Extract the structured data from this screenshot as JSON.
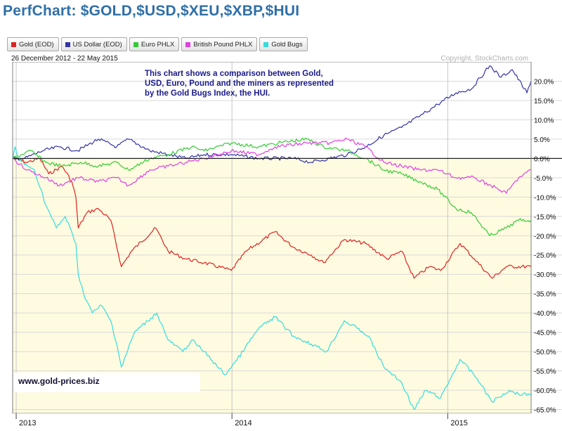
{
  "page": {
    "title": "PerfChart: $GOLD,$USD,$XEU,$XBP,$HUI"
  },
  "header": {
    "date_range": "26 December 2012 - 22 May 2015",
    "copyright": "Copyright, StockCharts.com",
    "annotation": [
      "This chart shows a comparison between Gold,",
      "USD, Euro, Pound and the miners as represented",
      "by the Gold Bugs Index, the HUI."
    ],
    "website": "www.gold-prices.biz"
  },
  "legend": [
    {
      "label": "Gold (EOD)",
      "color": "#dd2222"
    },
    {
      "label": "US Dollar (EOD)",
      "color": "#3333aa"
    },
    {
      "label": "Euro PHLX",
      "color": "#33cc33"
    },
    {
      "label": "British Pound PHLX",
      "color": "#e040e0"
    },
    {
      "label": "Gold Bugs",
      "color": "#33dddd"
    }
  ],
  "colors": {
    "gold": "#dd2222",
    "usd": "#3333aa",
    "euro": "#33cc33",
    "pound": "#e040e0",
    "hui": "#33dddd",
    "annotation": "#1a1a8c",
    "plot_negative_bg": "#fffbe0"
  },
  "chart_data": {
    "type": "line",
    "x_unit": "date",
    "x_range": [
      "2012-12-26",
      "2015-05-22"
    ],
    "x_ticks": [
      {
        "label": "2013",
        "date": "2013-01-01"
      },
      {
        "label": "2014",
        "date": "2014-01-01"
      },
      {
        "label": "2015",
        "date": "2015-01-01"
      }
    ],
    "y_unit": "percent change",
    "ylim": [
      -66,
      25
    ],
    "y_ticks": [
      20,
      15,
      10,
      5,
      0,
      -5,
      -10,
      -15,
      -20,
      -25,
      -30,
      -35,
      -40,
      -45,
      -50,
      -55,
      -60,
      -65
    ],
    "y_tick_labels": [
      "20.0%",
      "15.0%",
      "10.0%",
      "5.0%",
      "0.0%",
      "-5.0%",
      "-10.0%",
      "-15.0%",
      "-20.0%",
      "-25.0%",
      "-30.0%",
      "-35.0%",
      "-40.0%",
      "-45.0%",
      "-50.0%",
      "-55.0%",
      "-60.0%",
      "-65.0%"
    ],
    "grid": true,
    "series": [
      {
        "name": "Gold (EOD)",
        "color": "#dd2222",
        "points": [
          [
            "2012-12-26",
            0
          ],
          [
            "2013-01-20",
            -1
          ],
          [
            "2013-02-10",
            0
          ],
          [
            "2013-02-25",
            -4
          ],
          [
            "2013-03-20",
            -2
          ],
          [
            "2013-04-05",
            -6
          ],
          [
            "2013-04-12",
            -10
          ],
          [
            "2013-04-16",
            -18
          ],
          [
            "2013-05-01",
            -14
          ],
          [
            "2013-05-20",
            -13
          ],
          [
            "2013-06-10",
            -16
          ],
          [
            "2013-06-28",
            -28
          ],
          [
            "2013-07-15",
            -24
          ],
          [
            "2013-08-25",
            -18
          ],
          [
            "2013-09-15",
            -24
          ],
          [
            "2013-10-15",
            -26
          ],
          [
            "2013-11-15",
            -27
          ],
          [
            "2013-12-31",
            -29
          ],
          [
            "2014-01-25",
            -24
          ],
          [
            "2014-03-15",
            -19
          ],
          [
            "2014-04-15",
            -23
          ],
          [
            "2014-05-15",
            -25
          ],
          [
            "2014-06-05",
            -27
          ],
          [
            "2014-07-10",
            -21
          ],
          [
            "2014-08-15",
            -22
          ],
          [
            "2014-09-20",
            -26
          ],
          [
            "2014-10-15",
            -24
          ],
          [
            "2014-11-05",
            -31
          ],
          [
            "2014-12-01",
            -28
          ],
          [
            "2014-12-20",
            -29
          ],
          [
            "2015-01-22",
            -22
          ],
          [
            "2015-02-15",
            -26
          ],
          [
            "2015-03-17",
            -31
          ],
          [
            "2015-04-10",
            -28
          ],
          [
            "2015-05-22",
            -28
          ]
        ]
      },
      {
        "name": "US Dollar (EOD)",
        "color": "#3333aa",
        "points": [
          [
            "2012-12-26",
            0
          ],
          [
            "2013-01-15",
            0
          ],
          [
            "2013-02-15",
            2
          ],
          [
            "2013-03-15",
            3
          ],
          [
            "2013-04-15",
            2
          ],
          [
            "2013-05-20",
            5
          ],
          [
            "2013-06-20",
            3
          ],
          [
            "2013-07-10",
            5
          ],
          [
            "2013-08-15",
            2
          ],
          [
            "2013-09-15",
            1
          ],
          [
            "2013-10-15",
            0
          ],
          [
            "2013-11-15",
            1
          ],
          [
            "2013-12-31",
            1
          ],
          [
            "2014-02-15",
            0
          ],
          [
            "2014-04-15",
            0
          ],
          [
            "2014-05-15",
            -1
          ],
          [
            "2014-06-15",
            0
          ],
          [
            "2014-07-15",
            1
          ],
          [
            "2014-08-15",
            3
          ],
          [
            "2014-09-15",
            6
          ],
          [
            "2014-10-15",
            8
          ],
          [
            "2014-11-15",
            11
          ],
          [
            "2014-12-15",
            14
          ],
          [
            "2015-01-15",
            17
          ],
          [
            "2015-02-10",
            18
          ],
          [
            "2015-03-13",
            24
          ],
          [
            "2015-04-01",
            21
          ],
          [
            "2015-04-20",
            23
          ],
          [
            "2015-05-15",
            17
          ],
          [
            "2015-05-22",
            20
          ]
        ]
      },
      {
        "name": "Euro PHLX",
        "color": "#33cc33",
        "points": [
          [
            "2012-12-26",
            0
          ],
          [
            "2013-01-25",
            2
          ],
          [
            "2013-02-20",
            -1
          ],
          [
            "2013-03-20",
            -2
          ],
          [
            "2013-04-20",
            -1
          ],
          [
            "2013-05-20",
            -2
          ],
          [
            "2013-06-20",
            -1
          ],
          [
            "2013-07-10",
            -3
          ],
          [
            "2013-08-15",
            0
          ],
          [
            "2013-09-15",
            1
          ],
          [
            "2013-10-25",
            3
          ],
          [
            "2013-11-15",
            2
          ],
          [
            "2013-12-31",
            4
          ],
          [
            "2014-02-15",
            3
          ],
          [
            "2014-03-20",
            4
          ],
          [
            "2014-05-08",
            5
          ],
          [
            "2014-06-05",
            3
          ],
          [
            "2014-07-15",
            2
          ],
          [
            "2014-08-15",
            0
          ],
          [
            "2014-09-15",
            -3
          ],
          [
            "2014-10-15",
            -4
          ],
          [
            "2014-11-15",
            -6
          ],
          [
            "2014-12-15",
            -8
          ],
          [
            "2015-01-15",
            -13
          ],
          [
            "2015-02-10",
            -14
          ],
          [
            "2015-03-13",
            -20
          ],
          [
            "2015-04-10",
            -18
          ],
          [
            "2015-05-01",
            -16
          ],
          [
            "2015-05-22",
            -16
          ]
        ]
      },
      {
        "name": "British Pound PHLX",
        "color": "#e040e0",
        "points": [
          [
            "2012-12-26",
            0
          ],
          [
            "2013-01-20",
            -3
          ],
          [
            "2013-02-20",
            -5
          ],
          [
            "2013-03-15",
            -7
          ],
          [
            "2013-04-15",
            -5
          ],
          [
            "2013-05-20",
            -6
          ],
          [
            "2013-06-20",
            -5
          ],
          [
            "2013-07-10",
            -7
          ],
          [
            "2013-08-15",
            -3
          ],
          [
            "2013-09-15",
            -2
          ],
          [
            "2013-10-15",
            -1
          ],
          [
            "2013-11-15",
            0
          ],
          [
            "2013-12-31",
            2
          ],
          [
            "2014-02-15",
            1
          ],
          [
            "2014-03-15",
            3
          ],
          [
            "2014-05-08",
            4
          ],
          [
            "2014-06-15",
            4
          ],
          [
            "2014-07-15",
            5
          ],
          [
            "2014-08-15",
            3
          ],
          [
            "2014-09-15",
            -1
          ],
          [
            "2014-10-15",
            -2
          ],
          [
            "2014-11-15",
            -3
          ],
          [
            "2014-12-15",
            -3
          ],
          [
            "2015-01-15",
            -5
          ],
          [
            "2015-02-15",
            -5
          ],
          [
            "2015-03-15",
            -7
          ],
          [
            "2015-04-10",
            -9
          ],
          [
            "2015-05-01",
            -5
          ],
          [
            "2015-05-22",
            -3
          ]
        ]
      },
      {
        "name": "Gold Bugs",
        "color": "#33dddd",
        "points": [
          [
            "2012-12-26",
            0
          ],
          [
            "2012-12-30",
            3
          ],
          [
            "2013-01-05",
            0
          ],
          [
            "2013-01-20",
            -2
          ],
          [
            "2013-02-01",
            -3
          ],
          [
            "2013-02-20",
            -12
          ],
          [
            "2013-03-10",
            -18
          ],
          [
            "2013-03-25",
            -15
          ],
          [
            "2013-04-12",
            -22
          ],
          [
            "2013-04-16",
            -30
          ],
          [
            "2013-04-25",
            -35
          ],
          [
            "2013-05-10",
            -40
          ],
          [
            "2013-05-25",
            -38
          ],
          [
            "2013-06-10",
            -42
          ],
          [
            "2013-06-20",
            -48
          ],
          [
            "2013-06-28",
            -54
          ],
          [
            "2013-07-20",
            -45
          ],
          [
            "2013-08-27",
            -40
          ],
          [
            "2013-09-15",
            -47
          ],
          [
            "2013-10-10",
            -50
          ],
          [
            "2013-10-25",
            -47
          ],
          [
            "2013-11-15",
            -50
          ],
          [
            "2013-12-20",
            -56
          ],
          [
            "2014-01-10",
            -52
          ],
          [
            "2014-02-15",
            -44
          ],
          [
            "2014-03-15",
            -41
          ],
          [
            "2014-04-15",
            -46
          ],
          [
            "2014-05-15",
            -48
          ],
          [
            "2014-06-10",
            -50
          ],
          [
            "2014-07-10",
            -42
          ],
          [
            "2014-08-01",
            -44
          ],
          [
            "2014-08-20",
            -46
          ],
          [
            "2014-09-15",
            -54
          ],
          [
            "2014-10-15",
            -58
          ],
          [
            "2014-11-05",
            -65
          ],
          [
            "2014-11-25",
            -60
          ],
          [
            "2014-12-20",
            -62
          ],
          [
            "2015-01-22",
            -52
          ],
          [
            "2015-02-20",
            -57
          ],
          [
            "2015-03-17",
            -63
          ],
          [
            "2015-04-15",
            -60
          ],
          [
            "2015-05-01",
            -61
          ],
          [
            "2015-05-22",
            -61
          ]
        ]
      }
    ]
  }
}
